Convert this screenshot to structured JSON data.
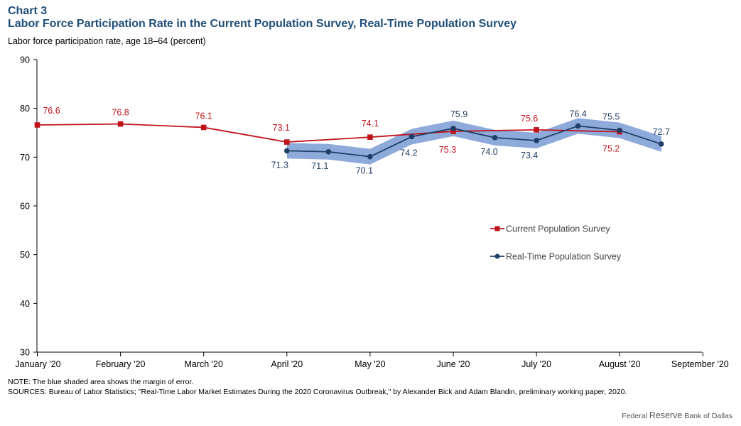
{
  "header": {
    "chart_label": "Chart 3",
    "title": "Labor Force Participation Rate in the Current Population Survey, Real-Time Population Survey",
    "y_caption": "Labor force participation rate, age 18–64 (percent)"
  },
  "footer": {
    "note": "NOTE: The blue shaded area shows the margin of error.",
    "sources": "SOURCES: Bureau of Labor Statistics; \"Real-Time Labor Market Estimates During the 2020 Coronavirus Outbreak,\" by Alexander Bick and Adam Blandin, preliminary working paper, 2020.",
    "credit_pre": "Federal ",
    "credit_big": "Reserve",
    "credit_post": " Bank of Dallas"
  },
  "colors": {
    "cps": "#c0141c",
    "rps": "#1f3f66",
    "band": "#8eaadb"
  },
  "chart_data": {
    "type": "line",
    "xlabel": "",
    "ylabel": "Labor force participation rate, age 18–64 (percent)",
    "ylim": [
      30,
      90
    ],
    "yticks": [
      30,
      40,
      50,
      60,
      70,
      80,
      90
    ],
    "xlim": [
      0,
      8
    ],
    "x_tick_labels": [
      "January '20",
      "February '20",
      "March '20",
      "April '20",
      "May '20",
      "June '20",
      "July '20",
      "August '20",
      "September '20"
    ],
    "legend": "center-right",
    "series": [
      {
        "name": "Current Population Survey",
        "x": [
          0,
          1,
          2,
          3,
          4,
          5,
          6,
          7
        ],
        "values": [
          76.6,
          76.8,
          76.1,
          73.1,
          74.1,
          75.3,
          75.6,
          75.2
        ],
        "labels": [
          "76.6",
          "76.8",
          "76.1",
          "73.1",
          "74.1",
          "75.3",
          "75.6",
          "75.2"
        ]
      },
      {
        "name": "Real-Time Population Survey",
        "x": [
          3,
          3.5,
          4,
          4.5,
          5,
          5.5,
          6,
          6.5,
          7,
          7.5
        ],
        "values": [
          71.3,
          71.1,
          70.1,
          74.2,
          75.9,
          74.0,
          73.4,
          76.4,
          75.5,
          72.7
        ],
        "labels": [
          "71.3",
          "71.1",
          "70.1",
          "74.2",
          "75.9",
          "74.0",
          "73.4",
          "76.4",
          "75.5",
          "72.7"
        ],
        "margin_of_error": 1.6
      }
    ]
  }
}
